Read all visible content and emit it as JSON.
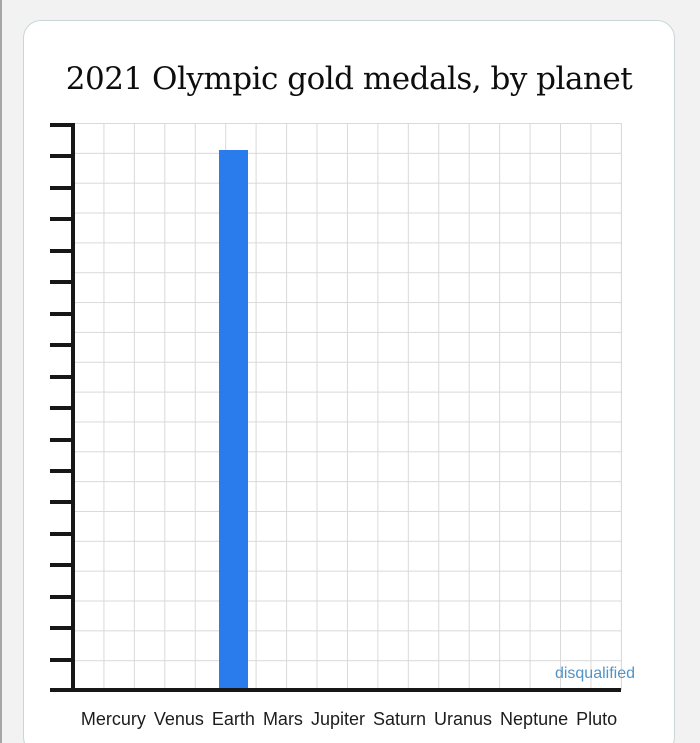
{
  "page": {
    "background_color": "#f2f2f2",
    "card_background": "#ffffff",
    "card_border_color": "#c9d6d9"
  },
  "chart_data": {
    "type": "bar",
    "title": "2021 Olympic gold medals, by planet",
    "categories": [
      "Mercury",
      "Venus",
      "Earth",
      "Mars",
      "Jupiter",
      "Saturn",
      "Uranus",
      "Neptune",
      "Pluto"
    ],
    "values": [
      0,
      0,
      18,
      0,
      0,
      0,
      0,
      0,
      0
    ],
    "ylim": [
      0,
      18.9
    ],
    "xlabel": "",
    "ylabel": "",
    "grid": true,
    "y_tick_count": 18,
    "y_tick_labels": [],
    "legend": "none",
    "bar_color": "#2a7bec",
    "axis_color": "#171717",
    "grid_color": "#d9d9d9",
    "annotations": [
      {
        "text": "disqualified",
        "target": "Pluto",
        "color": "#5093c8",
        "position": "bottom-right"
      }
    ]
  }
}
